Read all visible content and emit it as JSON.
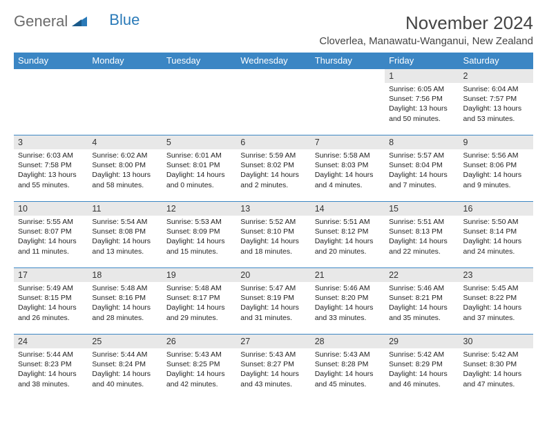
{
  "logo": {
    "text1": "General",
    "text2": "Blue"
  },
  "title": "November 2024",
  "location": "Cloverlea, Manawatu-Wanganui, New Zealand",
  "colors": {
    "header_bg": "#3b86c4",
    "header_text": "#ffffff",
    "daynum_bg": "#e8e8e8",
    "row_border": "#3b86c4",
    "title_color": "#444444",
    "logo_gray": "#6b6b6b",
    "logo_blue": "#2a7ab8"
  },
  "day_headers": [
    "Sunday",
    "Monday",
    "Tuesday",
    "Wednesday",
    "Thursday",
    "Friday",
    "Saturday"
  ],
  "weeks": [
    [
      null,
      null,
      null,
      null,
      null,
      {
        "n": "1",
        "sr": "6:05 AM",
        "ss": "7:56 PM",
        "dl": "13 hours and 50 minutes."
      },
      {
        "n": "2",
        "sr": "6:04 AM",
        "ss": "7:57 PM",
        "dl": "13 hours and 53 minutes."
      }
    ],
    [
      {
        "n": "3",
        "sr": "6:03 AM",
        "ss": "7:58 PM",
        "dl": "13 hours and 55 minutes."
      },
      {
        "n": "4",
        "sr": "6:02 AM",
        "ss": "8:00 PM",
        "dl": "13 hours and 58 minutes."
      },
      {
        "n": "5",
        "sr": "6:01 AM",
        "ss": "8:01 PM",
        "dl": "14 hours and 0 minutes."
      },
      {
        "n": "6",
        "sr": "5:59 AM",
        "ss": "8:02 PM",
        "dl": "14 hours and 2 minutes."
      },
      {
        "n": "7",
        "sr": "5:58 AM",
        "ss": "8:03 PM",
        "dl": "14 hours and 4 minutes."
      },
      {
        "n": "8",
        "sr": "5:57 AM",
        "ss": "8:04 PM",
        "dl": "14 hours and 7 minutes."
      },
      {
        "n": "9",
        "sr": "5:56 AM",
        "ss": "8:06 PM",
        "dl": "14 hours and 9 minutes."
      }
    ],
    [
      {
        "n": "10",
        "sr": "5:55 AM",
        "ss": "8:07 PM",
        "dl": "14 hours and 11 minutes."
      },
      {
        "n": "11",
        "sr": "5:54 AM",
        "ss": "8:08 PM",
        "dl": "14 hours and 13 minutes."
      },
      {
        "n": "12",
        "sr": "5:53 AM",
        "ss": "8:09 PM",
        "dl": "14 hours and 15 minutes."
      },
      {
        "n": "13",
        "sr": "5:52 AM",
        "ss": "8:10 PM",
        "dl": "14 hours and 18 minutes."
      },
      {
        "n": "14",
        "sr": "5:51 AM",
        "ss": "8:12 PM",
        "dl": "14 hours and 20 minutes."
      },
      {
        "n": "15",
        "sr": "5:51 AM",
        "ss": "8:13 PM",
        "dl": "14 hours and 22 minutes."
      },
      {
        "n": "16",
        "sr": "5:50 AM",
        "ss": "8:14 PM",
        "dl": "14 hours and 24 minutes."
      }
    ],
    [
      {
        "n": "17",
        "sr": "5:49 AM",
        "ss": "8:15 PM",
        "dl": "14 hours and 26 minutes."
      },
      {
        "n": "18",
        "sr": "5:48 AM",
        "ss": "8:16 PM",
        "dl": "14 hours and 28 minutes."
      },
      {
        "n": "19",
        "sr": "5:48 AM",
        "ss": "8:17 PM",
        "dl": "14 hours and 29 minutes."
      },
      {
        "n": "20",
        "sr": "5:47 AM",
        "ss": "8:19 PM",
        "dl": "14 hours and 31 minutes."
      },
      {
        "n": "21",
        "sr": "5:46 AM",
        "ss": "8:20 PM",
        "dl": "14 hours and 33 minutes."
      },
      {
        "n": "22",
        "sr": "5:46 AM",
        "ss": "8:21 PM",
        "dl": "14 hours and 35 minutes."
      },
      {
        "n": "23",
        "sr": "5:45 AM",
        "ss": "8:22 PM",
        "dl": "14 hours and 37 minutes."
      }
    ],
    [
      {
        "n": "24",
        "sr": "5:44 AM",
        "ss": "8:23 PM",
        "dl": "14 hours and 38 minutes."
      },
      {
        "n": "25",
        "sr": "5:44 AM",
        "ss": "8:24 PM",
        "dl": "14 hours and 40 minutes."
      },
      {
        "n": "26",
        "sr": "5:43 AM",
        "ss": "8:25 PM",
        "dl": "14 hours and 42 minutes."
      },
      {
        "n": "27",
        "sr": "5:43 AM",
        "ss": "8:27 PM",
        "dl": "14 hours and 43 minutes."
      },
      {
        "n": "28",
        "sr": "5:43 AM",
        "ss": "8:28 PM",
        "dl": "14 hours and 45 minutes."
      },
      {
        "n": "29",
        "sr": "5:42 AM",
        "ss": "8:29 PM",
        "dl": "14 hours and 46 minutes."
      },
      {
        "n": "30",
        "sr": "5:42 AM",
        "ss": "8:30 PM",
        "dl": "14 hours and 47 minutes."
      }
    ]
  ],
  "labels": {
    "sunrise": "Sunrise:",
    "sunset": "Sunset:",
    "daylight": "Daylight:"
  }
}
